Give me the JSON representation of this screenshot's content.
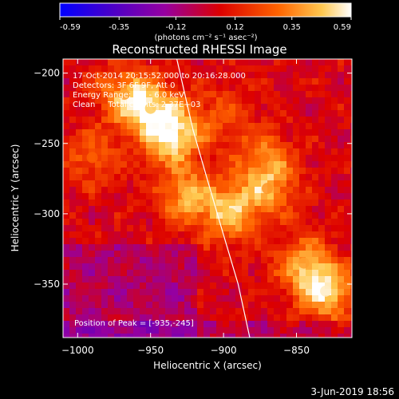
{
  "colorbar": {
    "ticks": [
      "-0.59",
      "-0.35",
      "-0.12",
      "0.12",
      "0.35",
      "0.59"
    ],
    "tick_values": [
      -0.59,
      -0.35,
      -0.12,
      0.12,
      0.35,
      0.59
    ],
    "range": [
      -0.59,
      0.59
    ],
    "units": "(photons cm⁻² s⁻¹ asec⁻²)",
    "colors": [
      "#0000ff",
      "#4b00c8",
      "#9600a0",
      "#dc0000",
      "#ff6400",
      "#ffc850",
      "#ffffff"
    ]
  },
  "chart_data": {
    "type": "heatmap",
    "title": "Reconstructed RHESSI Image",
    "xlabel": "Heliocentric X (arcsec)",
    "ylabel": "Heliocentric Y (arcsec)",
    "xlim": [
      -1010,
      -812
    ],
    "ylim": [
      -388,
      -190
    ],
    "x_ticks": [
      -1000,
      -950,
      -900,
      -850
    ],
    "x_tick_labels": [
      "−1000",
      "−950",
      "−900",
      "−850"
    ],
    "y_ticks": [
      -200,
      -250,
      -300,
      -350
    ],
    "y_tick_labels": [
      "−200",
      "−250",
      "−300",
      "−350"
    ],
    "annotations": [
      "17-Oct-2014 20:15:52.000 to 20:16:28.000",
      "Detectors: 3F 6F 9F, Att 0",
      "Energy Range: 3.0 - 6.0 keV",
      "Clean     Total counts: 2.37E+03"
    ],
    "peak_label": "Position of Peak = [-935,-245]",
    "peak": [
      -935,
      -245
    ],
    "hot_spots": [
      {
        "x": -935,
        "y": -245,
        "value": 0.59
      },
      {
        "x": -950,
        "y": -225,
        "value": 0.48
      },
      {
        "x": -968,
        "y": -215,
        "value": 0.4
      },
      {
        "x": -925,
        "y": -287,
        "value": 0.45
      },
      {
        "x": -895,
        "y": -300,
        "value": 0.48
      },
      {
        "x": -870,
        "y": -282,
        "value": 0.38
      },
      {
        "x": -872,
        "y": -260,
        "value": 0.32
      },
      {
        "x": -830,
        "y": -355,
        "value": 0.55
      },
      {
        "x": -845,
        "y": -335,
        "value": 0.4
      },
      {
        "x": -990,
        "y": -260,
        "value": 0.28
      },
      {
        "x": -900,
        "y": -230,
        "value": 0.25
      }
    ],
    "limb": [
      {
        "x": -932,
        "y": -190
      },
      {
        "x": -921,
        "y": -240
      },
      {
        "x": -911,
        "y": -276
      },
      {
        "x": -900,
        "y": -315
      },
      {
        "x": -890,
        "y": -350
      },
      {
        "x": -882,
        "y": -388
      }
    ]
  },
  "footer_date": "3-Jun-2019 18:56"
}
